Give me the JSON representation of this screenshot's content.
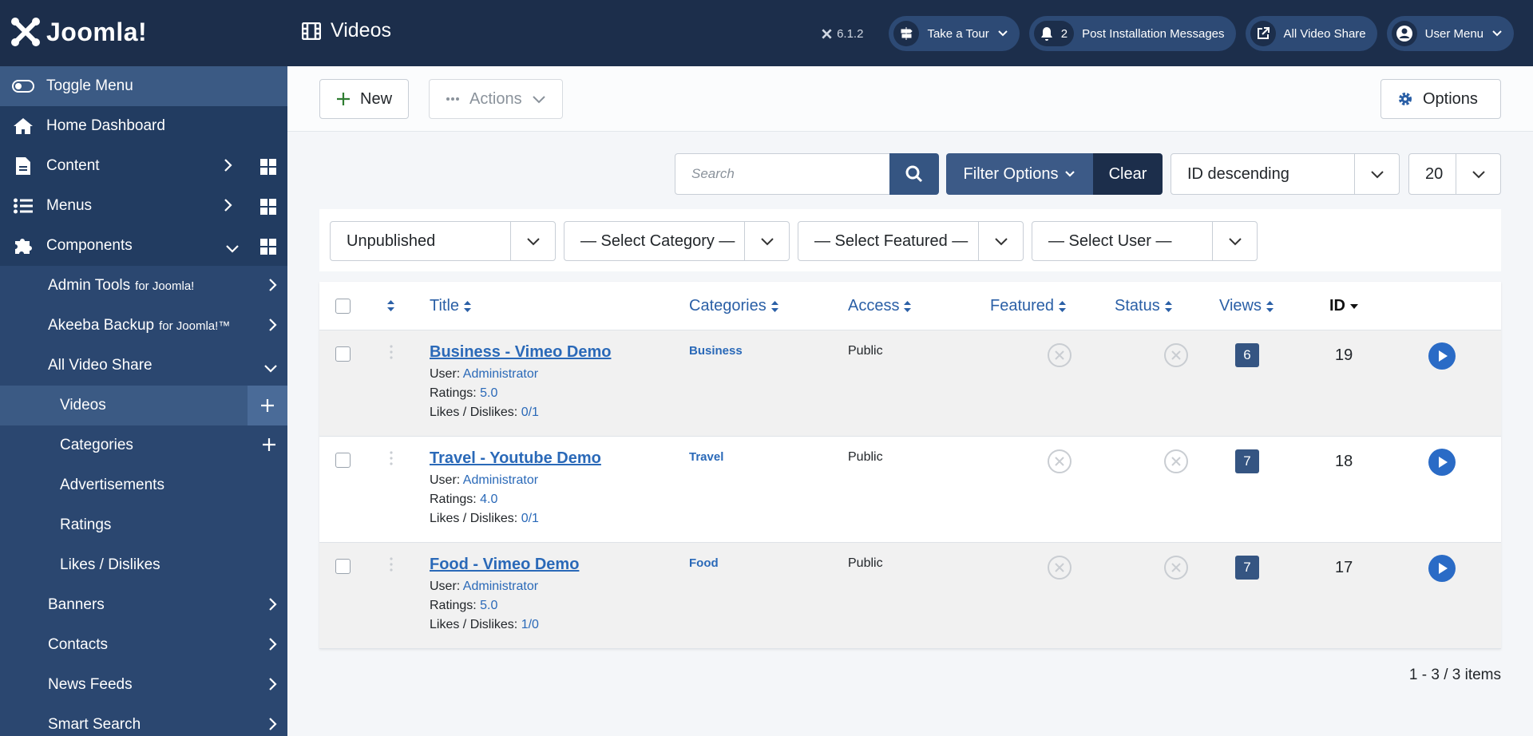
{
  "header": {
    "logo": "Joomla!",
    "page_title": "Videos",
    "version": "6.1.2",
    "tour": "Take a Tour",
    "notification_count": 2,
    "post_install": "Post Installation Messages",
    "site_link": "All Video Share",
    "user_menu": "User Menu"
  },
  "sidebar": {
    "items": [
      {
        "label": "Toggle Menu"
      },
      {
        "label": "Home Dashboard"
      },
      {
        "label": "Content"
      },
      {
        "label": "Menus"
      },
      {
        "label": "Components"
      },
      {
        "label": "Admin Tools",
        "sub": "for Joomla!"
      },
      {
        "label": "Akeeba Backup",
        "sub": "for Joomla!™"
      },
      {
        "label": "All Video Share"
      },
      {
        "label": "Videos"
      },
      {
        "label": "Categories"
      },
      {
        "label": "Advertisements"
      },
      {
        "label": "Ratings"
      },
      {
        "label": "Likes / Dislikes"
      },
      {
        "label": "Banners"
      },
      {
        "label": "Contacts"
      },
      {
        "label": "News Feeds"
      },
      {
        "label": "Smart Search"
      }
    ]
  },
  "toolbar": {
    "new": "New",
    "actions": "Actions",
    "options": "Options"
  },
  "search": {
    "placeholder": "Search",
    "filter_options": "Filter Options",
    "clear": "Clear",
    "sort": "ID descending",
    "limit": "20"
  },
  "filters": [
    "Unpublished",
    "— Select Category —",
    "— Select Featured —",
    "— Select User —"
  ],
  "table": {
    "headers": [
      "Title",
      "Categories",
      "Access",
      "Featured",
      "Status",
      "Views",
      "ID"
    ],
    "row_labels": {
      "user": "User:",
      "ratings": "Ratings:",
      "likes": "Likes / Dislikes:"
    },
    "rows": [
      {
        "title": "Business - Vimeo Demo",
        "user": "Administrator",
        "rating": "5.0",
        "likes": "0/1",
        "category": "Business",
        "access": "Public",
        "views": 6,
        "id": 19
      },
      {
        "title": "Travel - Youtube Demo",
        "user": "Administrator",
        "rating": "4.0",
        "likes": "0/1",
        "category": "Travel",
        "access": "Public",
        "views": 7,
        "id": 18
      },
      {
        "title": "Food - Vimeo Demo",
        "user": "Administrator",
        "rating": "5.0",
        "likes": "1/0",
        "category": "Food",
        "access": "Public",
        "views": 7,
        "id": 17
      }
    ]
  },
  "pagination": "1 - 3 / 3 items"
}
